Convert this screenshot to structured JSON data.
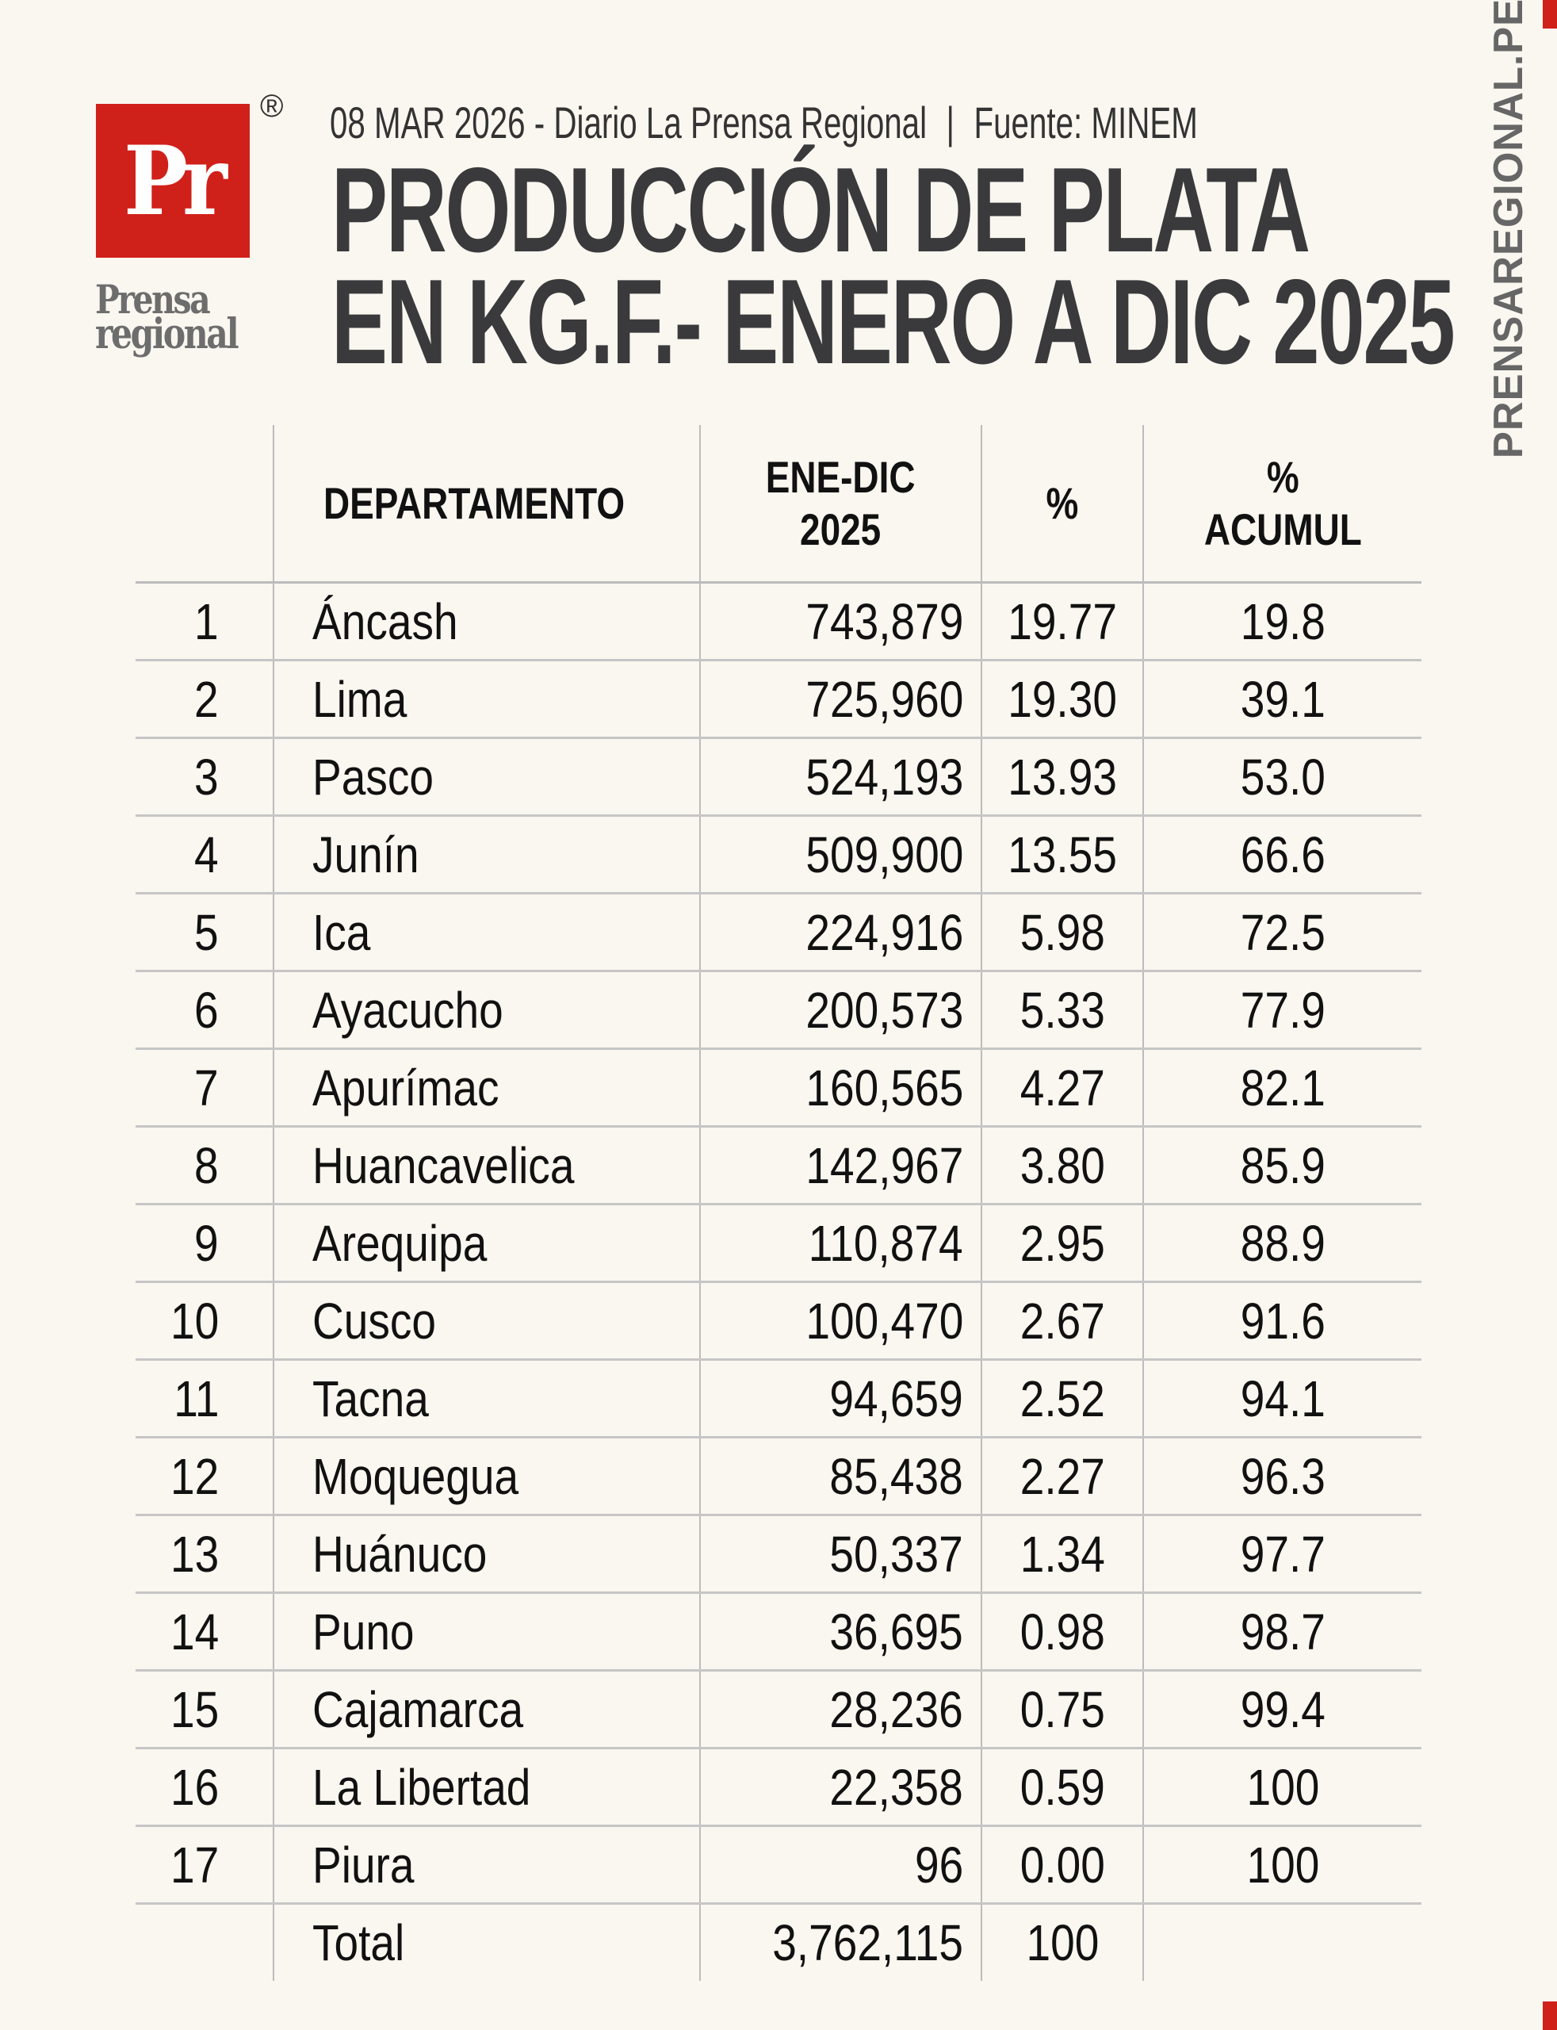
{
  "header": {
    "logo_mark": "Pr",
    "logo_registered": "®",
    "logo_name_line1": "Prensa",
    "logo_name_line2": "regional",
    "date_source": "08 MAR 2026 - Diario La Prensa Regional",
    "separator": "|",
    "source": "Fuente: MINEM",
    "title_line1": "PRODUCCIÓN DE PLATA",
    "title_line2": "EN KG.F.- ENERO A DIC 2025",
    "side_brand": "PRENSAREGIONAL.PE"
  },
  "colors": {
    "accent": "#d0201a",
    "background": "#faf6f0",
    "title": "#3a3a3c",
    "rule": "#bcbcbc"
  },
  "table": {
    "columns": [
      "",
      "DEPARTAMENTO",
      "ENE-DIC 2025",
      "%",
      "% ACUMUL"
    ],
    "rows": [
      [
        "1",
        "Áncash",
        "743,879",
        "19.77",
        "19.8"
      ],
      [
        "2",
        "Lima",
        "725,960",
        "19.30",
        "39.1"
      ],
      [
        "3",
        "Pasco",
        "524,193",
        "13.93",
        "53.0"
      ],
      [
        "4",
        "Junín",
        "509,900",
        "13.55",
        "66.6"
      ],
      [
        "5",
        "Ica",
        "224,916",
        "5.98",
        "72.5"
      ],
      [
        "6",
        "Ayacucho",
        "200,573",
        "5.33",
        "77.9"
      ],
      [
        "7",
        "Apurímac",
        "160,565",
        "4.27",
        "82.1"
      ],
      [
        "8",
        "Huancavelica",
        "142,967",
        "3.80",
        "85.9"
      ],
      [
        "9",
        "Arequipa",
        "110,874",
        "2.95",
        "88.9"
      ],
      [
        "10",
        "Cusco",
        "100,470",
        "2.67",
        "91.6"
      ],
      [
        "11",
        "Tacna",
        "94,659",
        "2.52",
        "94.1"
      ],
      [
        "12",
        "Moquegua",
        "85,438",
        "2.27",
        "96.3"
      ],
      [
        "13",
        "Huánuco",
        "50,337",
        "1.34",
        "97.7"
      ],
      [
        "14",
        "Puno",
        "36,695",
        "0.98",
        "98.7"
      ],
      [
        "15",
        "Cajamarca",
        "28,236",
        "0.75",
        "99.4"
      ],
      [
        "16",
        "La Libertad",
        "22,358",
        "0.59",
        "100"
      ],
      [
        "17",
        "Piura",
        "96",
        "0.00",
        "100"
      ]
    ],
    "total": [
      "",
      "Total",
      "3,762,115",
      "100",
      ""
    ]
  }
}
